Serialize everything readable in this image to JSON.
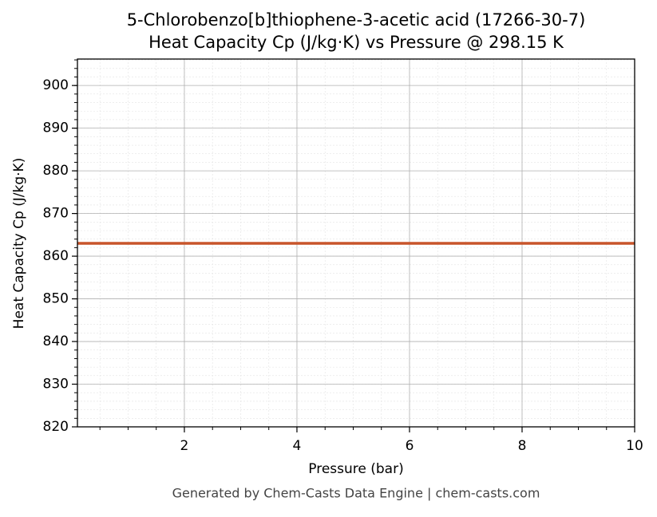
{
  "chart_data": {
    "type": "line",
    "title": "5-Chlorobenzo[b]thiophene-3-acetic acid (17266-30-7)",
    "subtitle": "Heat Capacity Cp (J/kg·K) vs Pressure @ 298.15 K",
    "x_label": "Pressure (bar)",
    "y_label": "Heat Capacity Cp (J/kg·K)",
    "footer": "Generated by Chem-Casts Data Engine | chem-casts.com",
    "x": [
      0.1,
      10
    ],
    "series": [
      {
        "name": "Cp",
        "color": "#c8552b",
        "values": [
          863,
          863
        ]
      }
    ],
    "xlim": [
      0.1,
      10
    ],
    "xticks": [
      2,
      4,
      6,
      8,
      10
    ],
    "ylim": [
      820,
      906.2
    ],
    "yticks": [
      820,
      830,
      840,
      850,
      860,
      870,
      880,
      890,
      900
    ],
    "grid": true,
    "minor_grid": true
  }
}
